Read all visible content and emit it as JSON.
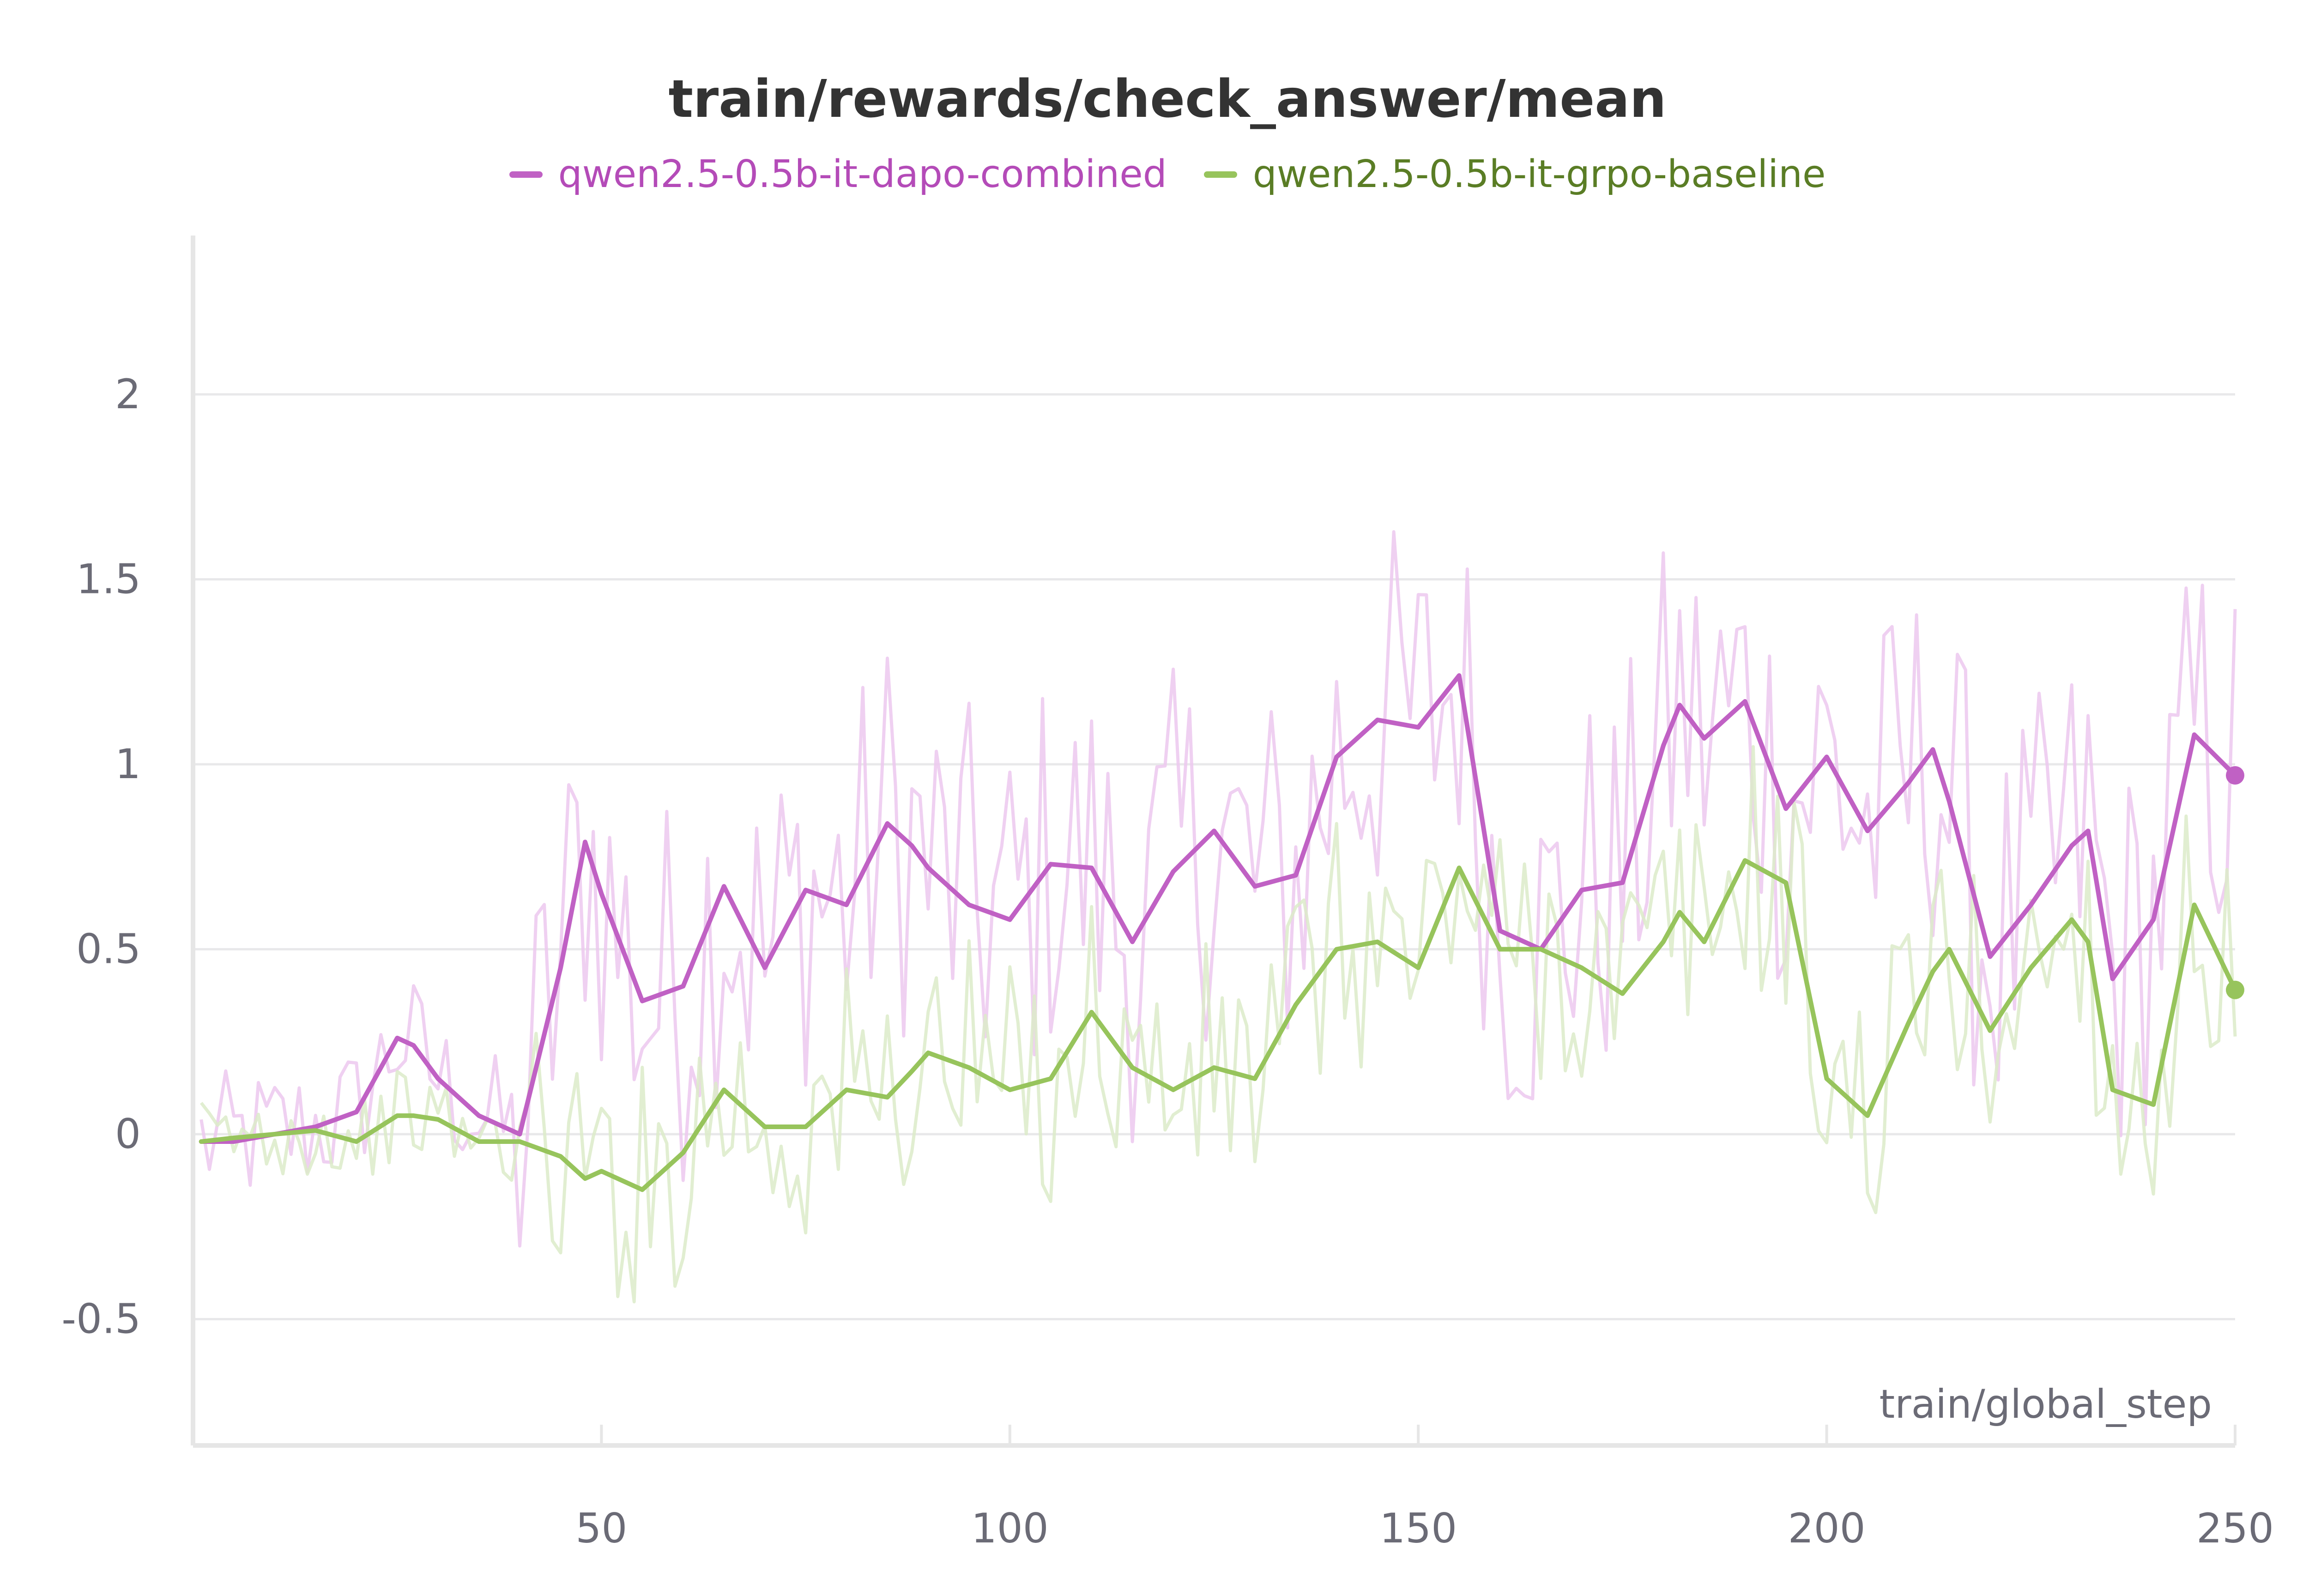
{
  "chart_data": {
    "type": "line",
    "title": "train/rewards/check_answer/mean",
    "xlabel": "train/global_step",
    "ylabel": "",
    "xlim": [
      0,
      250
    ],
    "ylim": [
      -0.85,
      2.4
    ],
    "xticks": [
      50,
      100,
      150,
      200,
      250
    ],
    "xtick_labels": [
      "50",
      "100",
      "150",
      "200",
      "250"
    ],
    "yticks": [
      -0.5,
      0,
      0.5,
      1,
      1.5,
      2
    ],
    "ytick_labels": [
      "-0.5",
      "0",
      "0.5",
      "1",
      "1.5",
      "2"
    ],
    "grid": true,
    "legend_position": "top-center",
    "x": [
      1,
      5,
      10,
      15,
      20,
      25,
      27,
      30,
      35,
      40,
      45,
      48,
      50,
      55,
      60,
      65,
      70,
      75,
      80,
      85,
      88,
      90,
      95,
      100,
      105,
      110,
      115,
      120,
      125,
      130,
      135,
      140,
      145,
      150,
      155,
      160,
      165,
      170,
      175,
      180,
      182,
      185,
      190,
      195,
      200,
      205,
      210,
      213,
      215,
      220,
      225,
      230,
      232,
      235,
      240,
      245,
      250
    ],
    "series": [
      {
        "name": "qwen2.5-0.5b-it-dapo-combined",
        "color": "#c061c4",
        "raw_color": "#ecc8ee",
        "values": [
          -0.02,
          -0.02,
          0.0,
          0.02,
          0.06,
          0.26,
          0.24,
          0.15,
          0.05,
          0.0,
          0.45,
          0.79,
          0.65,
          0.36,
          0.4,
          0.67,
          0.45,
          0.66,
          0.62,
          0.84,
          0.78,
          0.72,
          0.62,
          0.58,
          0.73,
          0.72,
          0.52,
          0.71,
          0.82,
          0.67,
          0.7,
          1.02,
          1.12,
          1.1,
          1.24,
          0.55,
          0.5,
          0.66,
          0.68,
          1.05,
          1.16,
          1.07,
          1.17,
          0.88,
          1.02,
          0.82,
          0.95,
          1.04,
          0.9,
          0.48,
          0.62,
          0.78,
          0.82,
          0.42,
          0.58,
          1.08,
          0.97
        ]
      },
      {
        "name": "qwen2.5-0.5b-it-grpo-baseline",
        "color": "#97c45c",
        "raw_color": "#dcebc9",
        "values": [
          -0.02,
          -0.01,
          0.0,
          0.01,
          -0.02,
          0.05,
          0.05,
          0.04,
          -0.02,
          -0.02,
          -0.06,
          -0.12,
          -0.1,
          -0.15,
          -0.05,
          0.12,
          0.02,
          0.02,
          0.12,
          0.1,
          0.17,
          0.22,
          0.18,
          0.12,
          0.15,
          0.33,
          0.18,
          0.12,
          0.18,
          0.15,
          0.35,
          0.5,
          0.52,
          0.45,
          0.72,
          0.5,
          0.5,
          0.45,
          0.38,
          0.52,
          0.6,
          0.52,
          0.74,
          0.68,
          0.15,
          0.05,
          0.3,
          0.44,
          0.5,
          0.28,
          0.45,
          0.58,
          0.52,
          0.12,
          0.08,
          0.62,
          0.39
        ]
      }
    ]
  }
}
